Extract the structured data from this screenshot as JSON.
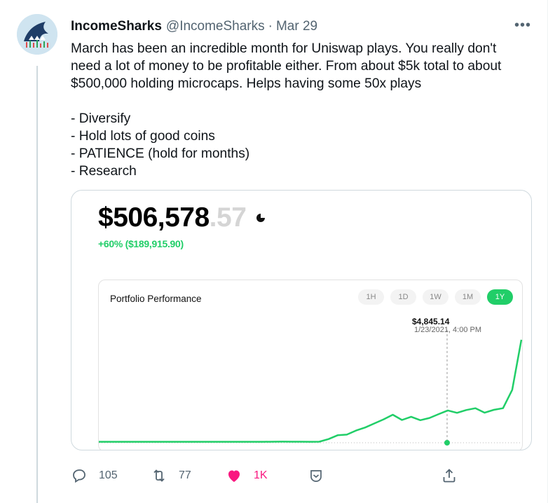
{
  "tweet": {
    "author_name": "IncomeSharks",
    "handle": "@IncomeSharks",
    "separator": "·",
    "date": "Mar 29",
    "more_label": "•••",
    "text_lines": [
      "March has been an incredible month for Uniswap plays. You really don't",
      "need a lot of money to be profitable either. From about $5k total to about",
      "$500,000 holding microcaps. Helps having some 50x plays"
    ],
    "list_items": [
      "- Diversify",
      "- Hold lots of good coins",
      "- PATIENCE (hold for months)",
      "- Research"
    ]
  },
  "portfolio": {
    "balance_main": "$506,578",
    "balance_cents": ".57",
    "gain": "+60% ($189,915.90)",
    "accent_color": "#21ce68"
  },
  "chart_data": {
    "type": "line",
    "title": "Portfolio Performance",
    "ranges": [
      "1H",
      "1D",
      "1W",
      "1M",
      "1Y"
    ],
    "active_range": "1Y",
    "tooltip": {
      "value": "$4,845.14",
      "date": "1/23/2021, 4:00 PM"
    },
    "series": [
      {
        "values": [
          4845,
          4845,
          4845,
          4845,
          4845,
          4845,
          4845,
          4845,
          4845,
          4845,
          4845,
          4845,
          4845,
          4845,
          4845,
          4845,
          4845,
          4846,
          4900,
          5100,
          5400,
          5000,
          5300,
          4845,
          5300,
          18000,
          37000,
          40000,
          60000,
          75000,
          95000,
          115000,
          138000,
          112000,
          128000,
          111000,
          122000,
          141000,
          159000,
          147000,
          161000,
          170000,
          148000,
          162000,
          170000,
          260000,
          506578
        ]
      }
    ],
    "ylim": [
      0,
      506578
    ],
    "grid": false
  },
  "actions": {
    "reply": {
      "icon": "reply-icon",
      "count": "105"
    },
    "retweet": {
      "icon": "retweet-icon",
      "count": "77"
    },
    "like": {
      "icon": "heart-icon",
      "count": "1K",
      "color": "#f91880"
    },
    "save": {
      "icon": "bookmark-icon"
    },
    "share": {
      "icon": "share-icon"
    }
  }
}
